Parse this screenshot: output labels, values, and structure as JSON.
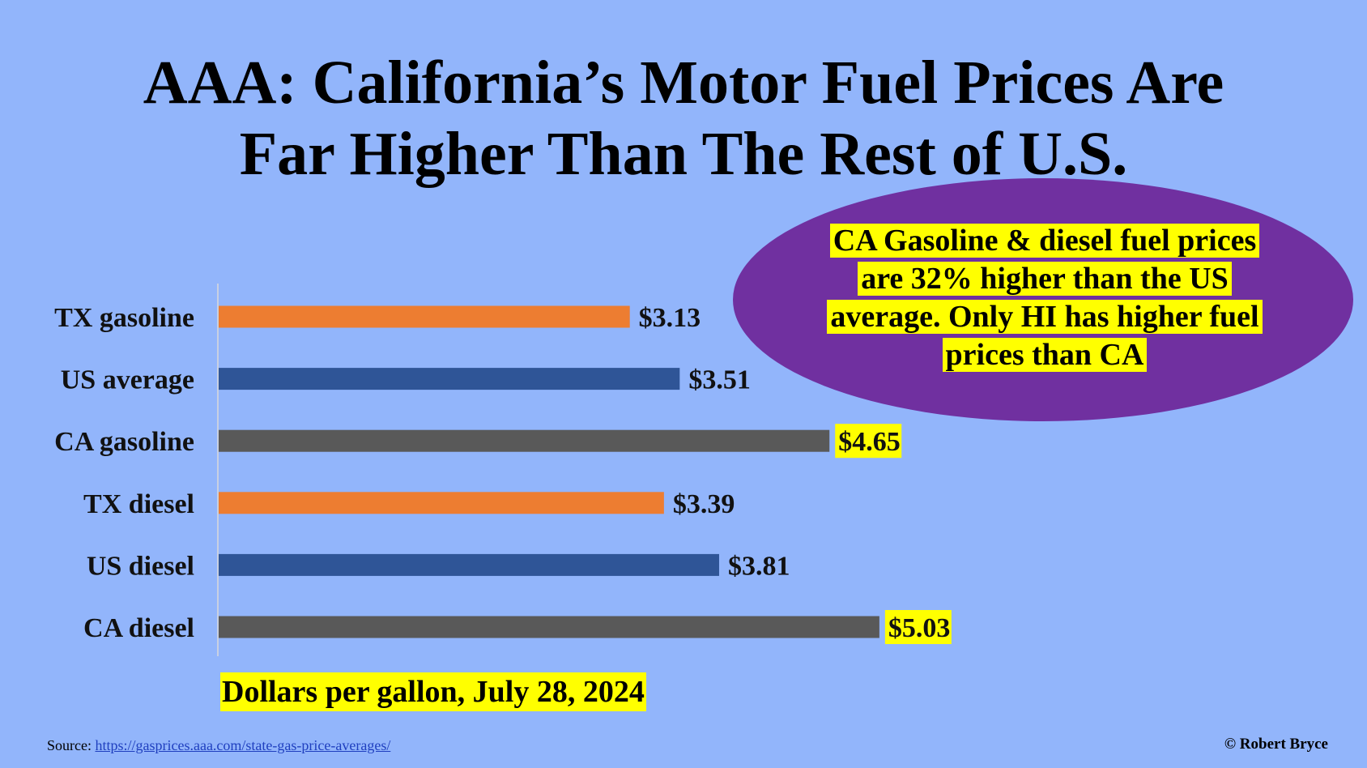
{
  "title": {
    "line1": "AAA: California’s Motor Fuel Prices Are",
    "line2": "Far Higher Than The Rest of U.S."
  },
  "callout": {
    "text": "CA Gasoline & diesel fuel prices are 32% higher than the US average. Only HI has higher fuel prices than CA"
  },
  "chart_data": {
    "type": "bar",
    "orientation": "horizontal",
    "categories": [
      "TX gasoline",
      "US average",
      "CA gasoline",
      "TX diesel",
      "US diesel",
      "CA diesel"
    ],
    "values": [
      3.13,
      3.51,
      4.65,
      3.39,
      3.81,
      5.03
    ],
    "value_labels": [
      "$3.13",
      "$3.51",
      "$4.65",
      "$3.39",
      "$3.81",
      "$5.03"
    ],
    "highlighted_labels": [
      false,
      false,
      true,
      false,
      false,
      true
    ],
    "colors": [
      "#ed7d31",
      "#2f5597",
      "#595959",
      "#ed7d31",
      "#2f5597",
      "#595959"
    ],
    "xlabel": "Dollars per gallon, July 28, 2024",
    "xlim": [
      0,
      7
    ],
    "grid": false,
    "legend": "none"
  },
  "footer": {
    "source_prefix": "Source: ",
    "source_link": "https://gasprices.aaa.com/state-gas-price-averages/",
    "credit": "© Robert Bryce"
  },
  "colors": {
    "background": "#92b5fb",
    "callout": "#7030a0",
    "highlight": "#ffff00"
  }
}
